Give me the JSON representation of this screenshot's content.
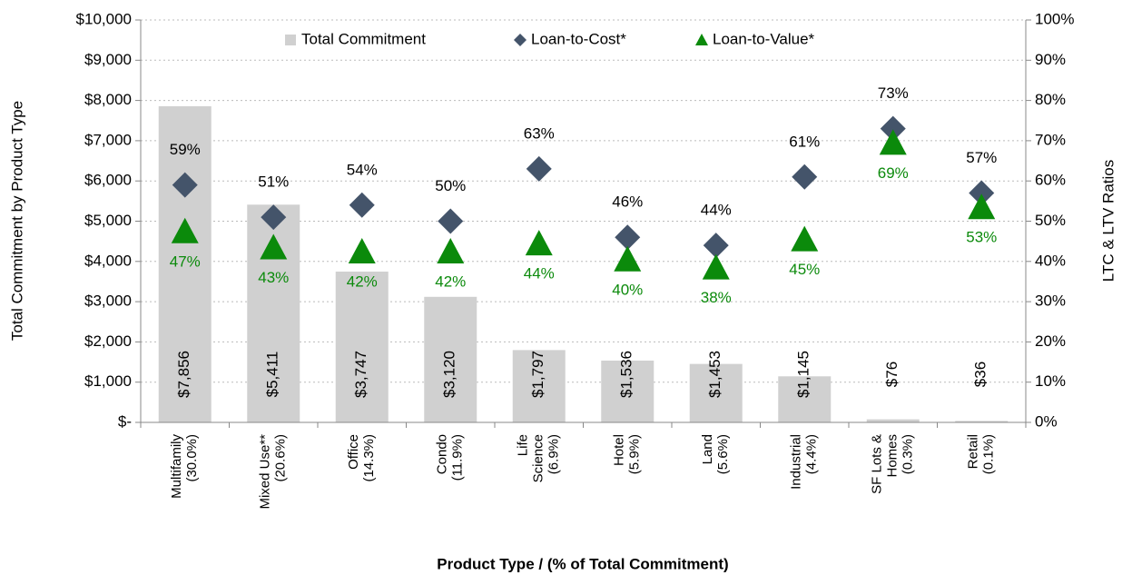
{
  "chart_data": {
    "type": "bar",
    "y_label": "Total Commitment by Product Type",
    "y2_label": "LTC & LTV Ratios",
    "x_label": "Product Type / (% of Total Commitment)",
    "categories": [
      [
        "Multifamily",
        "(30.0%)"
      ],
      [
        "Mixed Use**",
        "(20.6%)"
      ],
      [
        "Office",
        "(14.3%)"
      ],
      [
        "Condo",
        "(11.9%)"
      ],
      [
        "Life",
        "Science",
        "(6.9%)"
      ],
      [
        "Hotel",
        "(5.9%)"
      ],
      [
        "Land",
        "(5.6%)"
      ],
      [
        "Industrial",
        "(4.4%)"
      ],
      [
        "SF Lots &",
        "Homes",
        "(0.3%)"
      ],
      [
        "Retail",
        "(0.1%)"
      ]
    ],
    "series": [
      {
        "name": "Total Commitment",
        "color": "#d0d0d0",
        "values": [
          7856,
          5411,
          3747,
          3120,
          1797,
          1536,
          1453,
          1145,
          76,
          36
        ],
        "value_labels": [
          "$7,856",
          "$5,411",
          "$3,747",
          "$3,120",
          "$1,797",
          "$1,536",
          "$1,453",
          "$1,145",
          "$76",
          "$36"
        ]
      },
      {
        "name": "Loan-to-Cost*",
        "color": "#44546a",
        "axis": "y2",
        "marker": "diamond",
        "values": [
          59,
          51,
          54,
          50,
          63,
          46,
          44,
          61,
          73,
          57
        ],
        "value_labels": [
          "59%",
          "51%",
          "54%",
          "50%",
          "63%",
          "46%",
          "44%",
          "61%",
          "73%",
          "57%"
        ]
      },
      {
        "name": "Loan-to-Value*",
        "color": "#0b8a0b",
        "axis": "y2",
        "marker": "triangle",
        "values": [
          47,
          43,
          42,
          42,
          44,
          40,
          38,
          45,
          69,
          53
        ],
        "value_labels": [
          "47%",
          "43%",
          "42%",
          "42%",
          "44%",
          "40%",
          "38%",
          "45%",
          "69%",
          "53%"
        ]
      }
    ],
    "ylim": [
      0,
      10000
    ],
    "yticks": [
      {
        "value": 0,
        "label": "$-"
      },
      {
        "value": 1000,
        "label": "$1,000"
      },
      {
        "value": 2000,
        "label": "$2,000"
      },
      {
        "value": 3000,
        "label": "$3,000"
      },
      {
        "value": 4000,
        "label": "$4,000"
      },
      {
        "value": 5000,
        "label": "$5,000"
      },
      {
        "value": 6000,
        "label": "$6,000"
      },
      {
        "value": 7000,
        "label": "$7,000"
      },
      {
        "value": 8000,
        "label": "$8,000"
      },
      {
        "value": 9000,
        "label": "$9,000"
      },
      {
        "value": 10000,
        "label": "$10,000"
      }
    ],
    "y2lim": [
      0,
      100
    ],
    "y2ticks": [
      {
        "value": 0,
        "label": "0%"
      },
      {
        "value": 10,
        "label": "10%"
      },
      {
        "value": 20,
        "label": "20%"
      },
      {
        "value": 30,
        "label": "30%"
      },
      {
        "value": 40,
        "label": "40%"
      },
      {
        "value": 50,
        "label": "50%"
      },
      {
        "value": 60,
        "label": "60%"
      },
      {
        "value": 70,
        "label": "70%"
      },
      {
        "value": 80,
        "label": "80%"
      },
      {
        "value": 90,
        "label": "90%"
      },
      {
        "value": 100,
        "label": "100%"
      }
    ],
    "grid": true
  }
}
